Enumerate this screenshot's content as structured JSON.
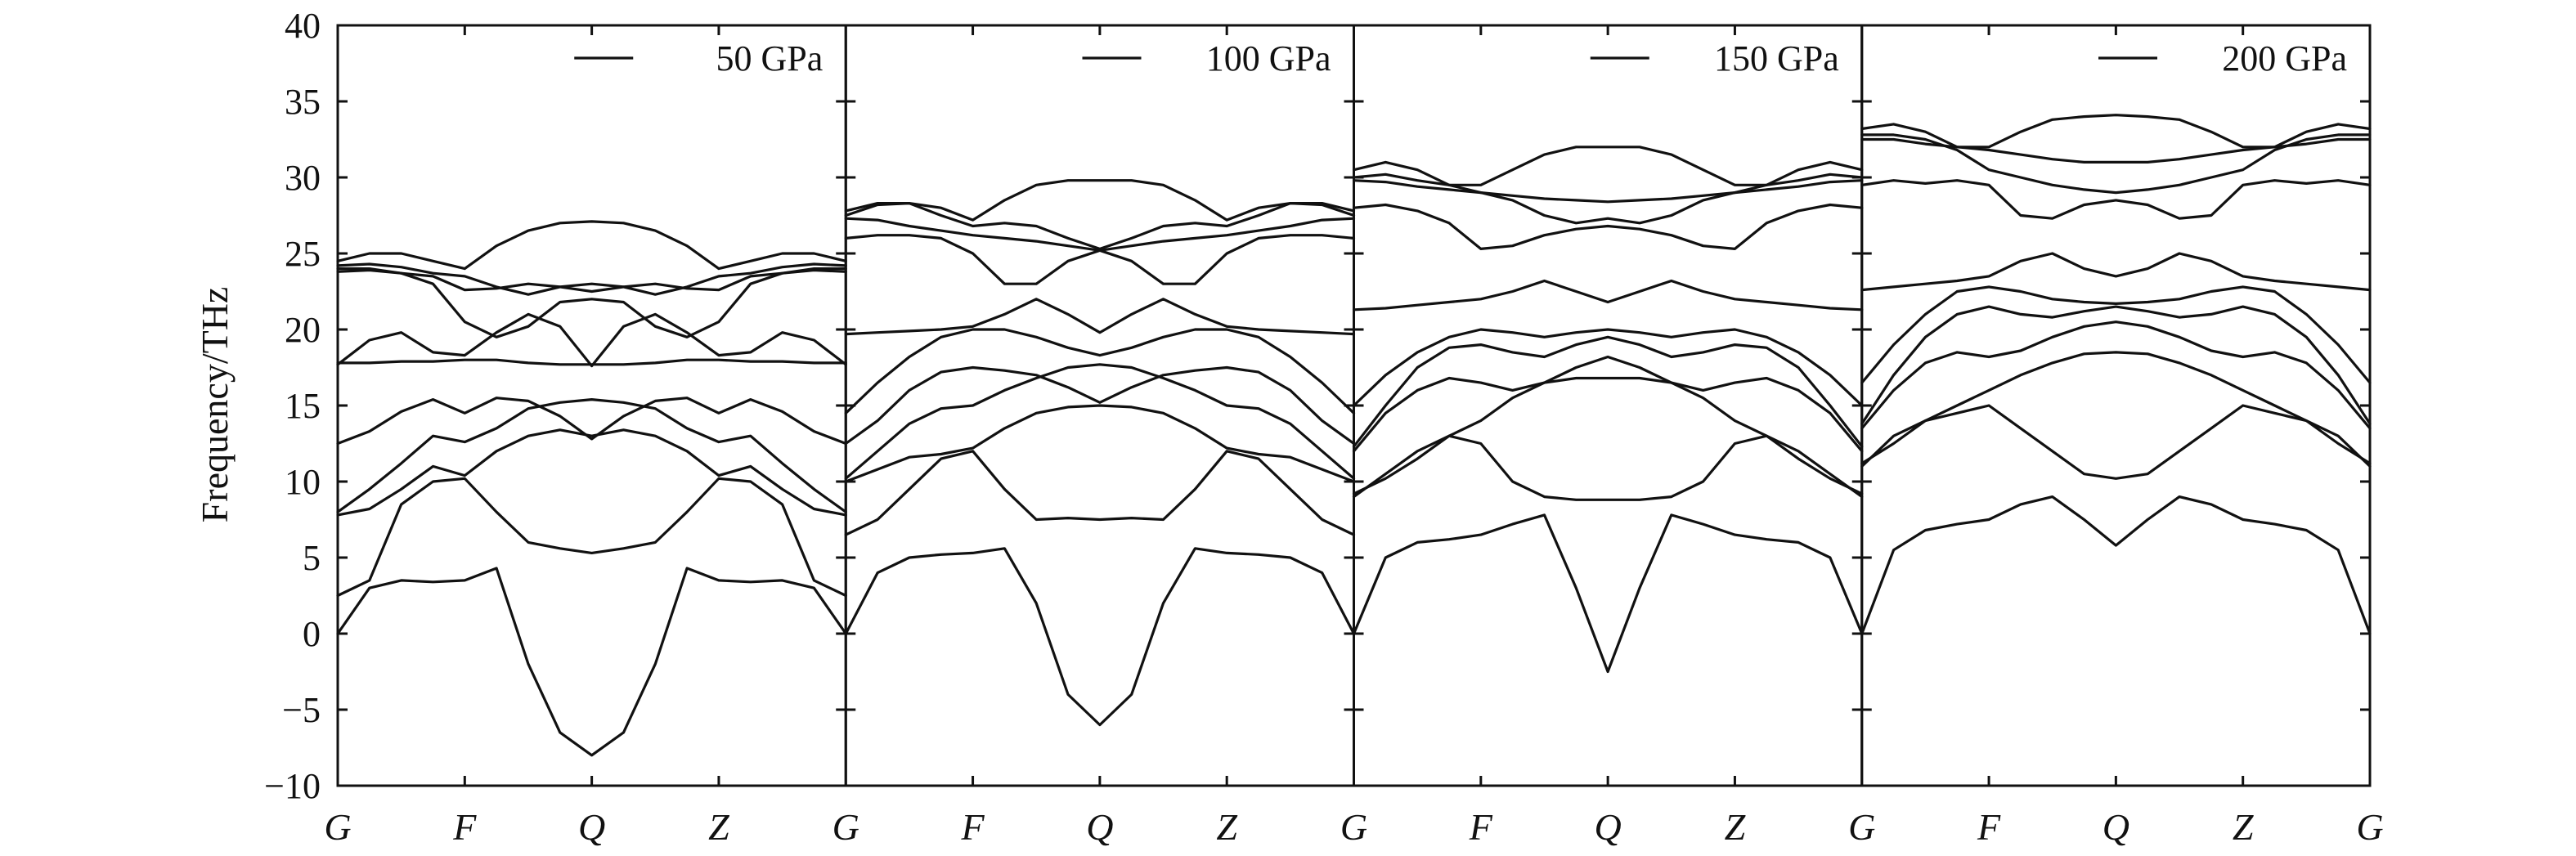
{
  "chart_data": {
    "type": "line",
    "ylabel": "Frequency/THz",
    "ylim": [
      -10,
      40
    ],
    "yticks": [
      -10,
      -5,
      0,
      5,
      10,
      15,
      20,
      25,
      30,
      35,
      40
    ],
    "ytick_labels": [
      "−10",
      "−5",
      "0",
      "5",
      "10",
      "15",
      "20",
      "25",
      "30",
      "35",
      "40"
    ],
    "xticks": [
      "G",
      "F",
      "Q",
      "Z",
      "G"
    ],
    "legend_position": "top-right",
    "colors": {
      "line": "#111111",
      "axis": "#111111"
    },
    "panels": [
      {
        "legend": "50 GPa",
        "bands": [
          [
            0,
            3.0,
            3.5,
            3.4,
            3.5,
            4.3,
            -2,
            -6.5,
            -8.0,
            -6.5,
            -2,
            4.3,
            3.5,
            3.4,
            3.5,
            3.0,
            0
          ],
          [
            2.5,
            3.5,
            8.5,
            10.0,
            10.2,
            8.0,
            6.0,
            5.6,
            5.3,
            5.6,
            6.0,
            8.0,
            10.2,
            10.0,
            8.5,
            3.5,
            2.5
          ],
          [
            7.8,
            8.2,
            9.5,
            11.0,
            10.4,
            12.0,
            13.0,
            13.4,
            13.0,
            13.4,
            13.0,
            12.0,
            10.4,
            11.0,
            9.5,
            8.2,
            7.8
          ],
          [
            8.0,
            9.5,
            11.2,
            13.0,
            12.6,
            13.5,
            14.8,
            15.2,
            15.4,
            15.2,
            14.8,
            13.5,
            12.6,
            13.0,
            11.2,
            9.5,
            8.0
          ],
          [
            12.5,
            13.3,
            14.6,
            15.4,
            14.5,
            15.5,
            15.3,
            14.3,
            12.8,
            14.3,
            15.3,
            15.5,
            14.5,
            15.4,
            14.6,
            13.3,
            12.5
          ],
          [
            17.8,
            17.8,
            17.9,
            17.9,
            18.0,
            18.0,
            17.8,
            17.7,
            17.7,
            17.7,
            17.8,
            18.0,
            18.0,
            17.9,
            17.9,
            17.8,
            17.8
          ],
          [
            17.7,
            19.3,
            19.8,
            18.5,
            18.3,
            19.8,
            21.0,
            20.2,
            17.6,
            20.2,
            21.0,
            19.8,
            18.3,
            18.5,
            19.8,
            19.3,
            17.7
          ],
          [
            23.8,
            23.9,
            23.7,
            23.0,
            20.5,
            19.5,
            20.2,
            21.8,
            22.0,
            21.8,
            20.2,
            19.5,
            20.5,
            23.0,
            23.7,
            23.9,
            23.8
          ],
          [
            24.0,
            24.0,
            23.7,
            23.5,
            22.6,
            22.7,
            23.0,
            22.8,
            22.5,
            22.8,
            23.0,
            22.7,
            22.6,
            23.5,
            23.7,
            24.0,
            24.0
          ],
          [
            24.2,
            24.3,
            24.1,
            23.7,
            23.5,
            22.8,
            22.3,
            22.8,
            23.0,
            22.8,
            22.3,
            22.8,
            23.5,
            23.7,
            24.1,
            24.3,
            24.2
          ],
          [
            24.5,
            25.0,
            25.0,
            24.5,
            24.0,
            25.5,
            26.5,
            27.0,
            27.1,
            27.0,
            26.5,
            25.5,
            24.0,
            24.5,
            25.0,
            25.0,
            24.5
          ]
        ]
      },
      {
        "legend": "100 GPa",
        "bands": [
          [
            0,
            4.0,
            5.0,
            5.2,
            5.3,
            5.6,
            2.0,
            -4.0,
            -6.0,
            -4.0,
            2.0,
            5.6,
            5.3,
            5.2,
            5.0,
            4.0,
            0
          ],
          [
            6.5,
            7.5,
            9.5,
            11.5,
            12.0,
            9.5,
            7.5,
            7.6,
            7.5,
            7.6,
            7.5,
            9.5,
            12.0,
            11.5,
            9.5,
            7.5,
            6.5
          ],
          [
            10.0,
            10.8,
            11.6,
            11.8,
            12.2,
            13.5,
            14.5,
            14.9,
            15.0,
            14.9,
            14.5,
            13.5,
            12.2,
            11.8,
            11.6,
            10.8,
            10.0
          ],
          [
            10.2,
            12.0,
            13.8,
            14.8,
            15.0,
            16.0,
            16.8,
            17.5,
            17.7,
            17.5,
            16.8,
            16.0,
            15.0,
            14.8,
            13.8,
            12.0,
            10.2
          ],
          [
            12.5,
            14.0,
            16.0,
            17.2,
            17.5,
            17.3,
            17.0,
            16.2,
            15.2,
            16.2,
            17.0,
            17.3,
            17.5,
            17.2,
            16.0,
            14.0,
            12.5
          ],
          [
            14.5,
            16.5,
            18.2,
            19.5,
            20.0,
            20.0,
            19.5,
            18.8,
            18.3,
            18.8,
            19.5,
            20.0,
            20.0,
            19.5,
            18.2,
            16.5,
            14.5
          ],
          [
            19.7,
            19.8,
            19.9,
            20.0,
            20.2,
            21.0,
            22.0,
            21.0,
            19.8,
            21.0,
            22.0,
            21.0,
            20.2,
            20.0,
            19.9,
            19.8,
            19.7
          ],
          [
            26.0,
            26.2,
            26.2,
            26.0,
            25.0,
            23.0,
            23.0,
            24.5,
            25.2,
            24.5,
            23.0,
            23.0,
            25.0,
            26.0,
            26.2,
            26.2,
            26.0
          ],
          [
            27.3,
            27.2,
            26.8,
            26.5,
            26.2,
            26.0,
            25.8,
            25.5,
            25.2,
            25.5,
            25.8,
            26.0,
            26.2,
            26.5,
            26.8,
            27.2,
            27.3
          ],
          [
            27.5,
            28.2,
            28.3,
            27.5,
            26.8,
            27.0,
            26.8,
            26.0,
            25.3,
            26.0,
            26.8,
            27.0,
            26.8,
            27.5,
            28.3,
            28.2,
            27.5
          ],
          [
            27.8,
            28.3,
            28.3,
            28.0,
            27.2,
            28.5,
            29.5,
            29.8,
            29.8,
            29.8,
            29.5,
            28.5,
            27.2,
            28.0,
            28.3,
            28.3,
            27.8
          ]
        ]
      },
      {
        "legend": "150 GPa",
        "bands": [
          [
            0,
            5.0,
            6.0,
            6.2,
            6.5,
            7.2,
            7.8,
            3.0,
            -2.5,
            3.0,
            7.8,
            7.2,
            6.5,
            6.2,
            6.0,
            5.0,
            0
          ],
          [
            9.0,
            10.5,
            12.0,
            13.0,
            12.5,
            10.0,
            9.0,
            8.8,
            8.8,
            8.8,
            9.0,
            10.0,
            12.5,
            13.0,
            12.0,
            10.5,
            9.0
          ],
          [
            9.2,
            10.2,
            11.5,
            13.0,
            14.0,
            15.5,
            16.5,
            16.8,
            16.8,
            16.8,
            16.5,
            15.5,
            14.0,
            13.0,
            11.5,
            10.2,
            9.2
          ],
          [
            12.0,
            14.5,
            16.0,
            16.8,
            16.5,
            16.0,
            16.5,
            17.5,
            18.2,
            17.5,
            16.5,
            16.0,
            16.5,
            16.8,
            16.0,
            14.5,
            12.0
          ],
          [
            12.3,
            15.0,
            17.5,
            18.8,
            19.0,
            18.5,
            18.2,
            19.0,
            19.5,
            19.0,
            18.2,
            18.5,
            19.0,
            18.8,
            17.5,
            15.0,
            12.3
          ],
          [
            15.0,
            17.0,
            18.5,
            19.5,
            20.0,
            19.8,
            19.5,
            19.8,
            20.0,
            19.8,
            19.5,
            19.8,
            20.0,
            19.5,
            18.5,
            17.0,
            15.0
          ],
          [
            21.3,
            21.4,
            21.6,
            21.8,
            22.0,
            22.5,
            23.2,
            22.5,
            21.8,
            22.5,
            23.2,
            22.5,
            22.0,
            21.8,
            21.6,
            21.4,
            21.3
          ],
          [
            28.0,
            28.2,
            27.8,
            27.0,
            25.3,
            25.5,
            26.2,
            26.6,
            26.8,
            26.6,
            26.2,
            25.5,
            25.3,
            27.0,
            27.8,
            28.2,
            28.0
          ],
          [
            29.8,
            29.7,
            29.4,
            29.2,
            29.0,
            28.8,
            28.6,
            28.5,
            28.4,
            28.5,
            28.6,
            28.8,
            29.0,
            29.2,
            29.4,
            29.7,
            29.8
          ],
          [
            30.0,
            30.2,
            29.8,
            29.5,
            29.0,
            28.5,
            27.5,
            27.0,
            27.3,
            27.0,
            27.5,
            28.5,
            29.0,
            29.5,
            29.8,
            30.2,
            30.0
          ],
          [
            30.5,
            31.0,
            30.5,
            29.5,
            29.5,
            30.5,
            31.5,
            32.0,
            32.0,
            32.0,
            31.5,
            30.5,
            29.5,
            29.5,
            30.5,
            31.0,
            30.5
          ]
        ]
      },
      {
        "legend": "200 GPa",
        "bands": [
          [
            0,
            5.5,
            6.8,
            7.2,
            7.5,
            8.5,
            9.0,
            7.5,
            5.8,
            7.5,
            9.0,
            8.5,
            7.5,
            7.2,
            6.8,
            5.5,
            0
          ],
          [
            11.0,
            13.0,
            14.0,
            14.5,
            15.0,
            13.5,
            12.0,
            10.5,
            10.2,
            10.5,
            12.0,
            13.5,
            15.0,
            14.5,
            14.0,
            13.0,
            11.0
          ],
          [
            11.2,
            12.5,
            14.0,
            15.0,
            16.0,
            17.0,
            17.8,
            18.4,
            18.5,
            18.4,
            17.8,
            17.0,
            16.0,
            15.0,
            14.0,
            12.5,
            11.2
          ],
          [
            13.5,
            16.0,
            17.8,
            18.5,
            18.2,
            18.6,
            19.5,
            20.2,
            20.5,
            20.2,
            19.5,
            18.6,
            18.2,
            18.5,
            17.8,
            16.0,
            13.5
          ],
          [
            13.8,
            17.0,
            19.5,
            21.0,
            21.5,
            21.0,
            20.8,
            21.2,
            21.5,
            21.2,
            20.8,
            21.0,
            21.5,
            21.0,
            19.5,
            17.0,
            13.8
          ],
          [
            16.5,
            19.0,
            21.0,
            22.5,
            22.8,
            22.5,
            22.0,
            21.8,
            21.7,
            21.8,
            22.0,
            22.5,
            22.8,
            22.5,
            21.0,
            19.0,
            16.5
          ],
          [
            22.6,
            22.8,
            23.0,
            23.2,
            23.5,
            24.5,
            25.0,
            24.0,
            23.5,
            24.0,
            25.0,
            24.5,
            23.5,
            23.2,
            23.0,
            22.8,
            22.6
          ],
          [
            29.5,
            29.8,
            29.6,
            29.8,
            29.5,
            27.5,
            27.3,
            28.2,
            28.5,
            28.2,
            27.3,
            27.5,
            29.5,
            29.8,
            29.6,
            29.8,
            29.5
          ],
          [
            32.5,
            32.5,
            32.2,
            32.0,
            31.8,
            31.5,
            31.2,
            31.0,
            31.0,
            31.0,
            31.2,
            31.5,
            31.8,
            32.0,
            32.2,
            32.5,
            32.5
          ],
          [
            32.8,
            32.8,
            32.5,
            31.8,
            30.5,
            30.0,
            29.5,
            29.2,
            29.0,
            29.2,
            29.5,
            30.0,
            30.5,
            31.8,
            32.5,
            32.8,
            32.8
          ],
          [
            33.2,
            33.5,
            33.0,
            32.0,
            32.0,
            33.0,
            33.8,
            34.0,
            34.1,
            34.0,
            33.8,
            33.0,
            32.0,
            32.0,
            33.0,
            33.5,
            33.2
          ]
        ]
      }
    ]
  }
}
